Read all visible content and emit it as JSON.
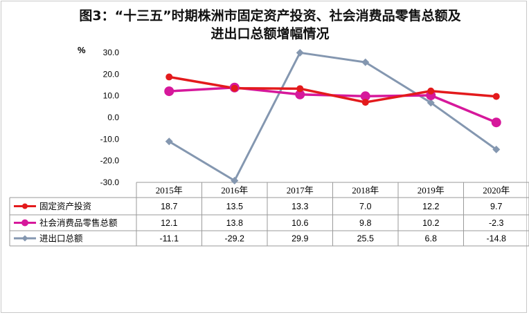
{
  "title_line1": "图3：“十三五”时期株洲市固定资产投资、社会消费品零售总额及",
  "title_line2": "进出口总额增幅情况",
  "chart_data": {
    "type": "line",
    "unit": "%",
    "categories": [
      "2015年",
      "2016年",
      "2017年",
      "2018年",
      "2019年",
      "2020年"
    ],
    "ylim": [
      -30,
      30
    ],
    "yticks": [
      "30.0",
      "20.0",
      "10.0",
      "0.0",
      "-10.0",
      "-20.0",
      "-30.0"
    ],
    "grid": false,
    "legend": "data-table",
    "series": [
      {
        "name": "固定资产投资",
        "values": [
          18.7,
          13.5,
          13.3,
          7.0,
          12.2,
          9.7
        ],
        "labels": [
          "18.7",
          "13.5",
          "13.3",
          "7.0",
          "12.2",
          "9.7"
        ],
        "color": "#e31a1c",
        "marker": "circle"
      },
      {
        "name": "社会消费品零售总额",
        "values": [
          12.1,
          13.8,
          10.6,
          9.8,
          10.2,
          -2.3
        ],
        "labels": [
          "12.1",
          "13.8",
          "10.6",
          "9.8",
          "10.2",
          "-2.3"
        ],
        "color": "#d6189b",
        "marker": "circle-large"
      },
      {
        "name": "进出口总额",
        "values": [
          -11.1,
          -29.2,
          29.9,
          25.5,
          6.8,
          -14.8
        ],
        "labels": [
          "-11.1",
          "-29.2",
          "29.9",
          "25.5",
          "6.8",
          "-14.8"
        ],
        "color": "#8497b0",
        "marker": "diamond"
      }
    ]
  }
}
